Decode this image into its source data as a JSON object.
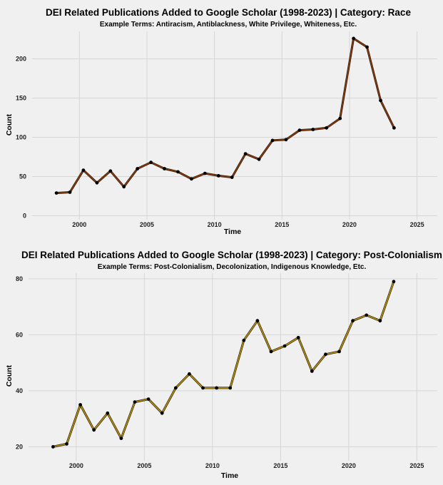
{
  "chart_data": [
    {
      "type": "line",
      "title": "DEI Related Publications Added to Google Scholar (1998-2023) | Category: Race",
      "subtitle": "Example Terms: Antiracism, Antiblackness, White Privilege, Whiteness, Etc.",
      "xlabel": "Time",
      "ylabel": "Count",
      "xlim": [
        1996.5,
        2026.5
      ],
      "ylim": [
        -5,
        235
      ],
      "x_ticks": [
        2000,
        2005,
        2010,
        2015,
        2020,
        2025
      ],
      "y_ticks": [
        0,
        50,
        100,
        150,
        200
      ],
      "grid": true,
      "line_color": "#8b3a0f",
      "point_color": "#000000",
      "series": [
        {
          "x": [
            1998.3,
            1999.3,
            2000.3,
            2001.3,
            2002.3,
            2003.3,
            2004.3,
            2005.3,
            2006.3,
            2007.3,
            2008.3,
            2009.3,
            2010.3,
            2011.3,
            2012.3,
            2013.3,
            2014.3,
            2015.3,
            2016.3,
            2017.3,
            2018.3,
            2019.3,
            2020.3,
            2021.3,
            2022.3,
            2023.3
          ],
          "values": [
            29,
            30,
            58,
            42,
            57,
            37,
            60,
            68,
            60,
            56,
            47,
            54,
            51,
            49,
            79,
            72,
            96,
            97,
            109,
            110,
            112,
            124,
            226,
            215,
            147,
            112
          ]
        }
      ]
    },
    {
      "type": "line",
      "title": "DEI Related Publications Added to Google Scholar (1998-2023) | Category: Post-Colonialism",
      "subtitle": "Example Terms: Post-Colonialism, Decolonization, Indigenous Knowledge, Etc.",
      "xlabel": "Time",
      "ylabel": "Count",
      "xlim": [
        1996.5,
        2026.5
      ],
      "ylim": [
        15,
        82
      ],
      "x_ticks": [
        2000,
        2005,
        2010,
        2015,
        2020,
        2025
      ],
      "y_ticks": [
        20,
        40,
        60,
        80
      ],
      "grid": true,
      "line_color": "#b8960c",
      "point_color": "#000000",
      "series": [
        {
          "x": [
            1998.3,
            1999.3,
            2000.3,
            2001.3,
            2002.3,
            2003.3,
            2004.3,
            2005.3,
            2006.3,
            2007.3,
            2008.3,
            2009.3,
            2010.3,
            2011.3,
            2012.3,
            2013.3,
            2014.3,
            2015.3,
            2016.3,
            2017.3,
            2018.3,
            2019.3,
            2020.3,
            2021.3,
            2022.3,
            2023.3
          ],
          "values": [
            20,
            21,
            35,
            26,
            32,
            23,
            36,
            37,
            32,
            41,
            46,
            41,
            41,
            41,
            58,
            65,
            54,
            56,
            59,
            47,
            53,
            54,
            65,
            67,
            65,
            79
          ]
        }
      ]
    }
  ]
}
